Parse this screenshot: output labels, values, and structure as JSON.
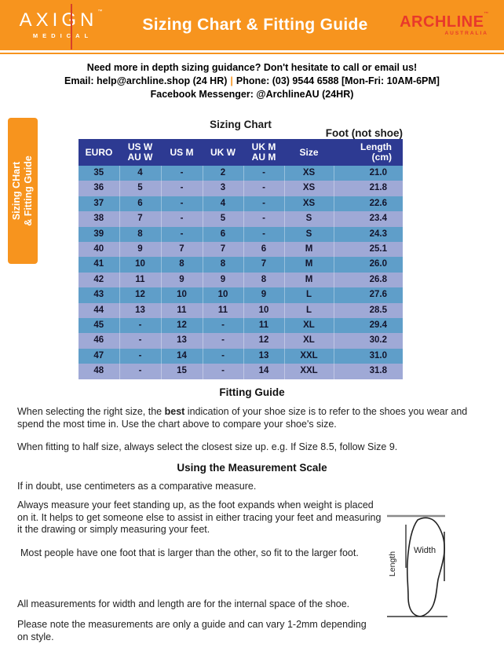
{
  "header": {
    "axign": {
      "name": "AXIGN",
      "tm": "™",
      "sub": "MEDICAL"
    },
    "title": "Sizing Chart & Fitting Guide",
    "archline": {
      "name": "ARCHLINE",
      "tm": "™",
      "sub": "AUSTRALIA"
    }
  },
  "contact": {
    "line1": "Need more in depth sizing guidance? Don't hesitate to call or email us!",
    "email": "Email: help@archline.shop (24 HR)",
    "separator": "|",
    "phone": "Phone: (03) 9544 6588 [Mon-Fri: 10AM-6PM]",
    "line3": "Facebook Messenger: @ArchlineAU (24HR)"
  },
  "side_tab": {
    "line1": "Sizing CHart",
    "line2": "& Fitting Guide"
  },
  "sizing_chart": {
    "title": "Sizing Chart",
    "foot_note": "Foot (not shoe)",
    "columns": [
      [
        "EURO",
        ""
      ],
      [
        "US W",
        "AU W"
      ],
      [
        "US M",
        ""
      ],
      [
        "UK W",
        ""
      ],
      [
        "UK M",
        "AU M"
      ],
      [
        "Size",
        ""
      ],
      [
        "Length",
        "(cm)"
      ]
    ],
    "rows": [
      [
        "35",
        "4",
        "-",
        "2",
        "-",
        "XS",
        "21.0"
      ],
      [
        "36",
        "5",
        "-",
        "3",
        "-",
        "XS",
        "21.8"
      ],
      [
        "37",
        "6",
        "-",
        "4",
        "-",
        "XS",
        "22.6"
      ],
      [
        "38",
        "7",
        "-",
        "5",
        "-",
        "S",
        "23.4"
      ],
      [
        "39",
        "8",
        "-",
        "6",
        "-",
        "S",
        "24.3"
      ],
      [
        "40",
        "9",
        "7",
        "7",
        "6",
        "M",
        "25.1"
      ],
      [
        "41",
        "10",
        "8",
        "8",
        "7",
        "M",
        "26.0"
      ],
      [
        "42",
        "11",
        "9",
        "9",
        "8",
        "M",
        "26.8"
      ],
      [
        "43",
        "12",
        "10",
        "10",
        "9",
        "L",
        "27.6"
      ],
      [
        "44",
        "13",
        "11",
        "11",
        "10",
        "L",
        "28.5"
      ],
      [
        "45",
        "-",
        "12",
        "-",
        "11",
        "XL",
        "29.4"
      ],
      [
        "46",
        "-",
        "13",
        "-",
        "12",
        "XL",
        "30.2"
      ],
      [
        "47",
        "-",
        "14",
        "-",
        "13",
        "XXL",
        "31.0"
      ],
      [
        "48",
        "-",
        "15",
        "-",
        "14",
        "XXL",
        "31.8"
      ]
    ]
  },
  "fitting_guide": {
    "title": "Fitting Guide",
    "p1_pre": "When selecting the right size, the ",
    "p1_bold": "best",
    "p1_post": " indication of your shoe size is to refer to the shoes you wear and spend the most time in. Use the chart above to compare your shoe's size.",
    "p2": "When fitting to half size, always select the closest size up. e.g. If Size 8.5, follow Size 9."
  },
  "measurement": {
    "title": "Using the Measurement Scale",
    "p1": "If in doubt, use centimeters as a comparative measure.",
    "p2": "Always measure your feet standing up, as the foot expands when weight is placed on it. It helps to get someone else to assist in either tracing your feet and measuring it the drawing or simply measuring your feet.",
    "p3": "Most people have one foot that is larger than the other, so fit to the larger foot.",
    "p4": "All measurements for width and length are for the internal space of the shoe.",
    "p5": "Please note the measurements are only a guide and can vary 1-2mm depending on style.",
    "diagram": {
      "width_label": "Width",
      "length_label": "Length"
    }
  },
  "colors": {
    "orange": "#F7941E",
    "navy_header": "#2D3A92",
    "row_blue": "#5F9EC9",
    "row_periwinkle": "#9FA9D6",
    "brand_red": "#E8392B"
  }
}
